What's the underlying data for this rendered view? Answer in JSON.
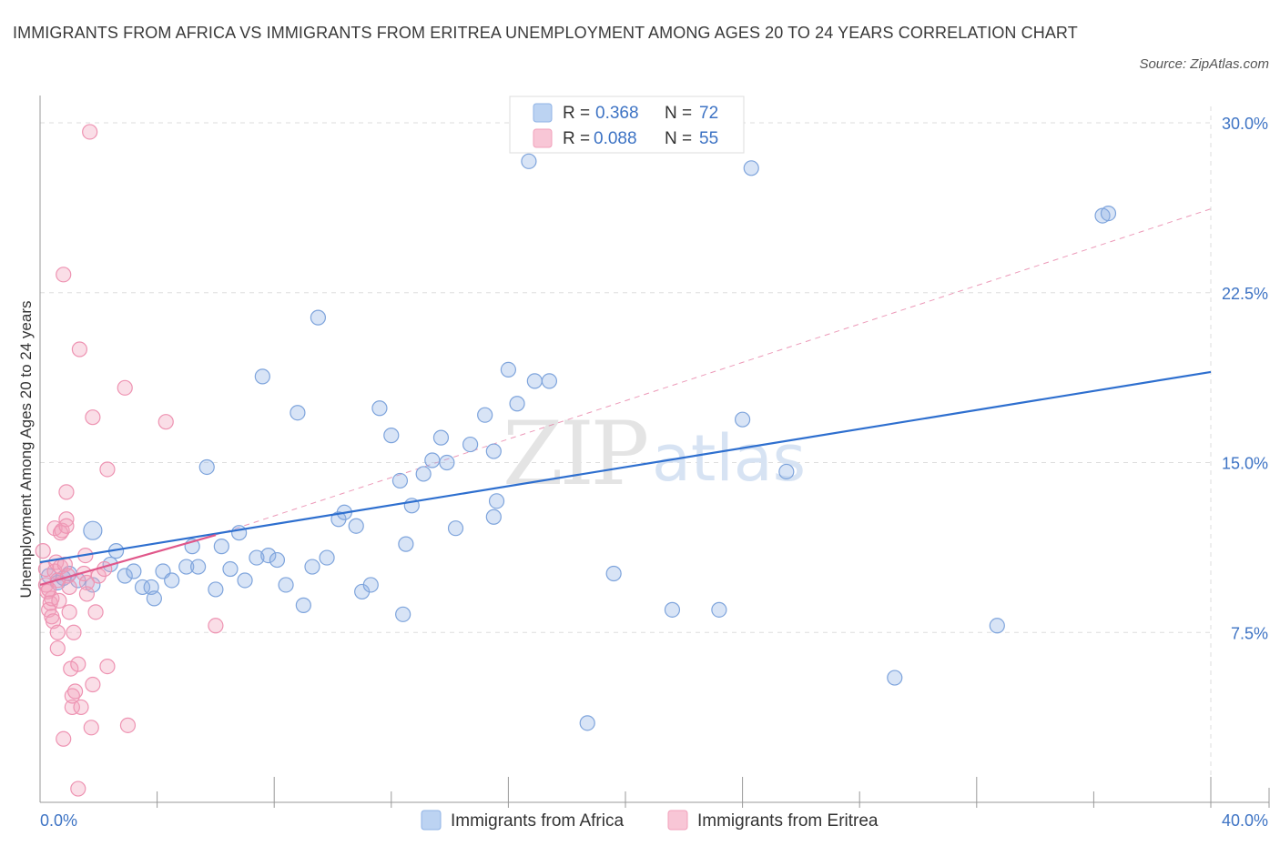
{
  "title": "IMMIGRANTS FROM AFRICA VS IMMIGRANTS FROM ERITREA UNEMPLOYMENT AMONG AGES 20 TO 24 YEARS CORRELATION CHART",
  "source": "Source: ZipAtlas.com",
  "watermark": {
    "zip": "ZIP",
    "atlas": "atlas"
  },
  "colors": {
    "africa": "#8fb3e6",
    "africa_line": "#2e6fcf",
    "eritrea": "#f2a0bb",
    "eritrea_line": "#e0578a",
    "axis_label": "#3d73c4",
    "grid": "#dddddd"
  },
  "legend": {
    "items": [
      {
        "r_label": "R = ",
        "r_value": "0.368",
        "n_label": "N = ",
        "n_value": "72"
      },
      {
        "r_label": "R = ",
        "r_value": "0.088",
        "n_label": "N = ",
        "n_value": "55"
      }
    ]
  },
  "bottom_legend": [
    "Immigrants from Africa",
    "Immigrants from Eritrea"
  ],
  "chart_data": {
    "type": "scatter",
    "xlabel": "",
    "ylabel": "Unemployment Among Ages 20 to 24 years",
    "xlim": [
      0,
      40
    ],
    "ylim": [
      0,
      30
    ],
    "x_tick_labels": [
      "0.0%",
      "40.0%"
    ],
    "y_ticks": [
      7.5,
      15.0,
      22.5,
      30.0
    ],
    "y_tick_labels": [
      "7.5%",
      "15.0%",
      "22.5%",
      "30.0%"
    ],
    "grid": true,
    "series": [
      {
        "name": "Immigrants from Africa",
        "R": 0.368,
        "N": 72,
        "trend": {
          "x": [
            0,
            40
          ],
          "y": [
            10.6,
            19.0
          ],
          "style": "solid"
        },
        "points": [
          [
            0.3,
            10.0
          ],
          [
            0.6,
            9.7
          ],
          [
            0.8,
            9.9
          ],
          [
            1.0,
            10.1
          ],
          [
            1.3,
            9.8
          ],
          [
            1.8,
            9.6
          ],
          [
            1.8,
            12.0
          ],
          [
            2.4,
            10.5
          ],
          [
            2.6,
            11.1
          ],
          [
            2.9,
            10.0
          ],
          [
            3.2,
            10.2
          ],
          [
            3.5,
            9.5
          ],
          [
            3.8,
            9.5
          ],
          [
            3.9,
            9.0
          ],
          [
            4.2,
            10.2
          ],
          [
            4.5,
            9.8
          ],
          [
            5.0,
            10.4
          ],
          [
            5.2,
            11.3
          ],
          [
            5.4,
            10.4
          ],
          [
            5.7,
            14.8
          ],
          [
            6.0,
            9.4
          ],
          [
            6.2,
            11.3
          ],
          [
            6.5,
            10.3
          ],
          [
            6.8,
            11.9
          ],
          [
            7.0,
            9.8
          ],
          [
            7.4,
            10.8
          ],
          [
            7.6,
            18.8
          ],
          [
            7.8,
            10.9
          ],
          [
            8.1,
            10.7
          ],
          [
            8.4,
            9.6
          ],
          [
            8.8,
            17.2
          ],
          [
            9.0,
            8.7
          ],
          [
            9.3,
            10.4
          ],
          [
            9.5,
            21.4
          ],
          [
            9.8,
            10.8
          ],
          [
            10.2,
            12.5
          ],
          [
            10.4,
            12.8
          ],
          [
            10.8,
            12.2
          ],
          [
            11.0,
            9.3
          ],
          [
            11.3,
            9.6
          ],
          [
            11.6,
            17.4
          ],
          [
            12.0,
            16.2
          ],
          [
            12.3,
            14.2
          ],
          [
            12.4,
            8.3
          ],
          [
            12.5,
            11.4
          ],
          [
            12.7,
            13.1
          ],
          [
            13.1,
            14.5
          ],
          [
            13.4,
            15.1
          ],
          [
            13.7,
            16.1
          ],
          [
            13.9,
            15.0
          ],
          [
            14.2,
            12.1
          ],
          [
            14.7,
            15.8
          ],
          [
            15.2,
            17.1
          ],
          [
            15.5,
            12.6
          ],
          [
            15.6,
            13.3
          ],
          [
            15.5,
            15.5
          ],
          [
            16.0,
            19.1
          ],
          [
            16.3,
            17.6
          ],
          [
            16.7,
            28.3
          ],
          [
            16.9,
            18.6
          ],
          [
            17.4,
            18.6
          ],
          [
            18.7,
            3.5
          ],
          [
            19.6,
            10.1
          ],
          [
            21.6,
            8.5
          ],
          [
            23.2,
            8.5
          ],
          [
            24.0,
            16.9
          ],
          [
            24.3,
            28.0
          ],
          [
            25.5,
            14.6
          ],
          [
            29.2,
            5.5
          ],
          [
            32.7,
            7.8
          ],
          [
            36.3,
            25.9
          ],
          [
            36.5,
            26.0
          ]
        ]
      },
      {
        "name": "Immigrants from Eritrea",
        "R": 0.088,
        "N": 55,
        "trend": {
          "x": [
            0,
            6.0
          ],
          "y": [
            9.6,
            11.8
          ],
          "style": "solid",
          "extension": {
            "x": [
              6.0,
              40
            ],
            "y": [
              11.8,
              26.2
            ],
            "style": "dashed"
          }
        },
        "points": [
          [
            0.1,
            11.1
          ],
          [
            0.2,
            10.3
          ],
          [
            0.2,
            9.6
          ],
          [
            0.25,
            9.3
          ],
          [
            0.3,
            8.5
          ],
          [
            0.35,
            8.8
          ],
          [
            0.4,
            9.0
          ],
          [
            0.4,
            8.2
          ],
          [
            0.45,
            8.0
          ],
          [
            0.5,
            10.2
          ],
          [
            0.5,
            12.1
          ],
          [
            0.55,
            10.6
          ],
          [
            0.6,
            9.8
          ],
          [
            0.6,
            7.5
          ],
          [
            0.6,
            6.8
          ],
          [
            0.7,
            10.4
          ],
          [
            0.7,
            11.9
          ],
          [
            0.75,
            12.0
          ],
          [
            0.8,
            23.3
          ],
          [
            0.8,
            2.8
          ],
          [
            0.85,
            10.5
          ],
          [
            0.9,
            13.7
          ],
          [
            0.9,
            12.5
          ],
          [
            0.9,
            12.2
          ],
          [
            0.95,
            10.0
          ],
          [
            1.0,
            8.4
          ],
          [
            1.0,
            9.5
          ],
          [
            1.05,
            5.9
          ],
          [
            1.1,
            4.2
          ],
          [
            1.1,
            4.7
          ],
          [
            1.15,
            7.5
          ],
          [
            1.2,
            4.9
          ],
          [
            1.3,
            0.6
          ],
          [
            1.3,
            6.1
          ],
          [
            1.35,
            20.0
          ],
          [
            1.4,
            4.2
          ],
          [
            1.5,
            10.1
          ],
          [
            1.55,
            10.9
          ],
          [
            1.6,
            9.7
          ],
          [
            1.7,
            29.6
          ],
          [
            1.75,
            3.3
          ],
          [
            1.8,
            17.0
          ],
          [
            1.8,
            5.2
          ],
          [
            1.9,
            8.4
          ],
          [
            2.0,
            10.0
          ],
          [
            2.2,
            10.3
          ],
          [
            2.3,
            14.7
          ],
          [
            2.3,
            6.0
          ],
          [
            2.9,
            18.3
          ],
          [
            3.0,
            3.4
          ],
          [
            4.3,
            16.8
          ],
          [
            6.0,
            7.8
          ],
          [
            1.6,
            9.2
          ],
          [
            0.65,
            8.9
          ],
          [
            0.3,
            9.4
          ]
        ]
      }
    ]
  }
}
